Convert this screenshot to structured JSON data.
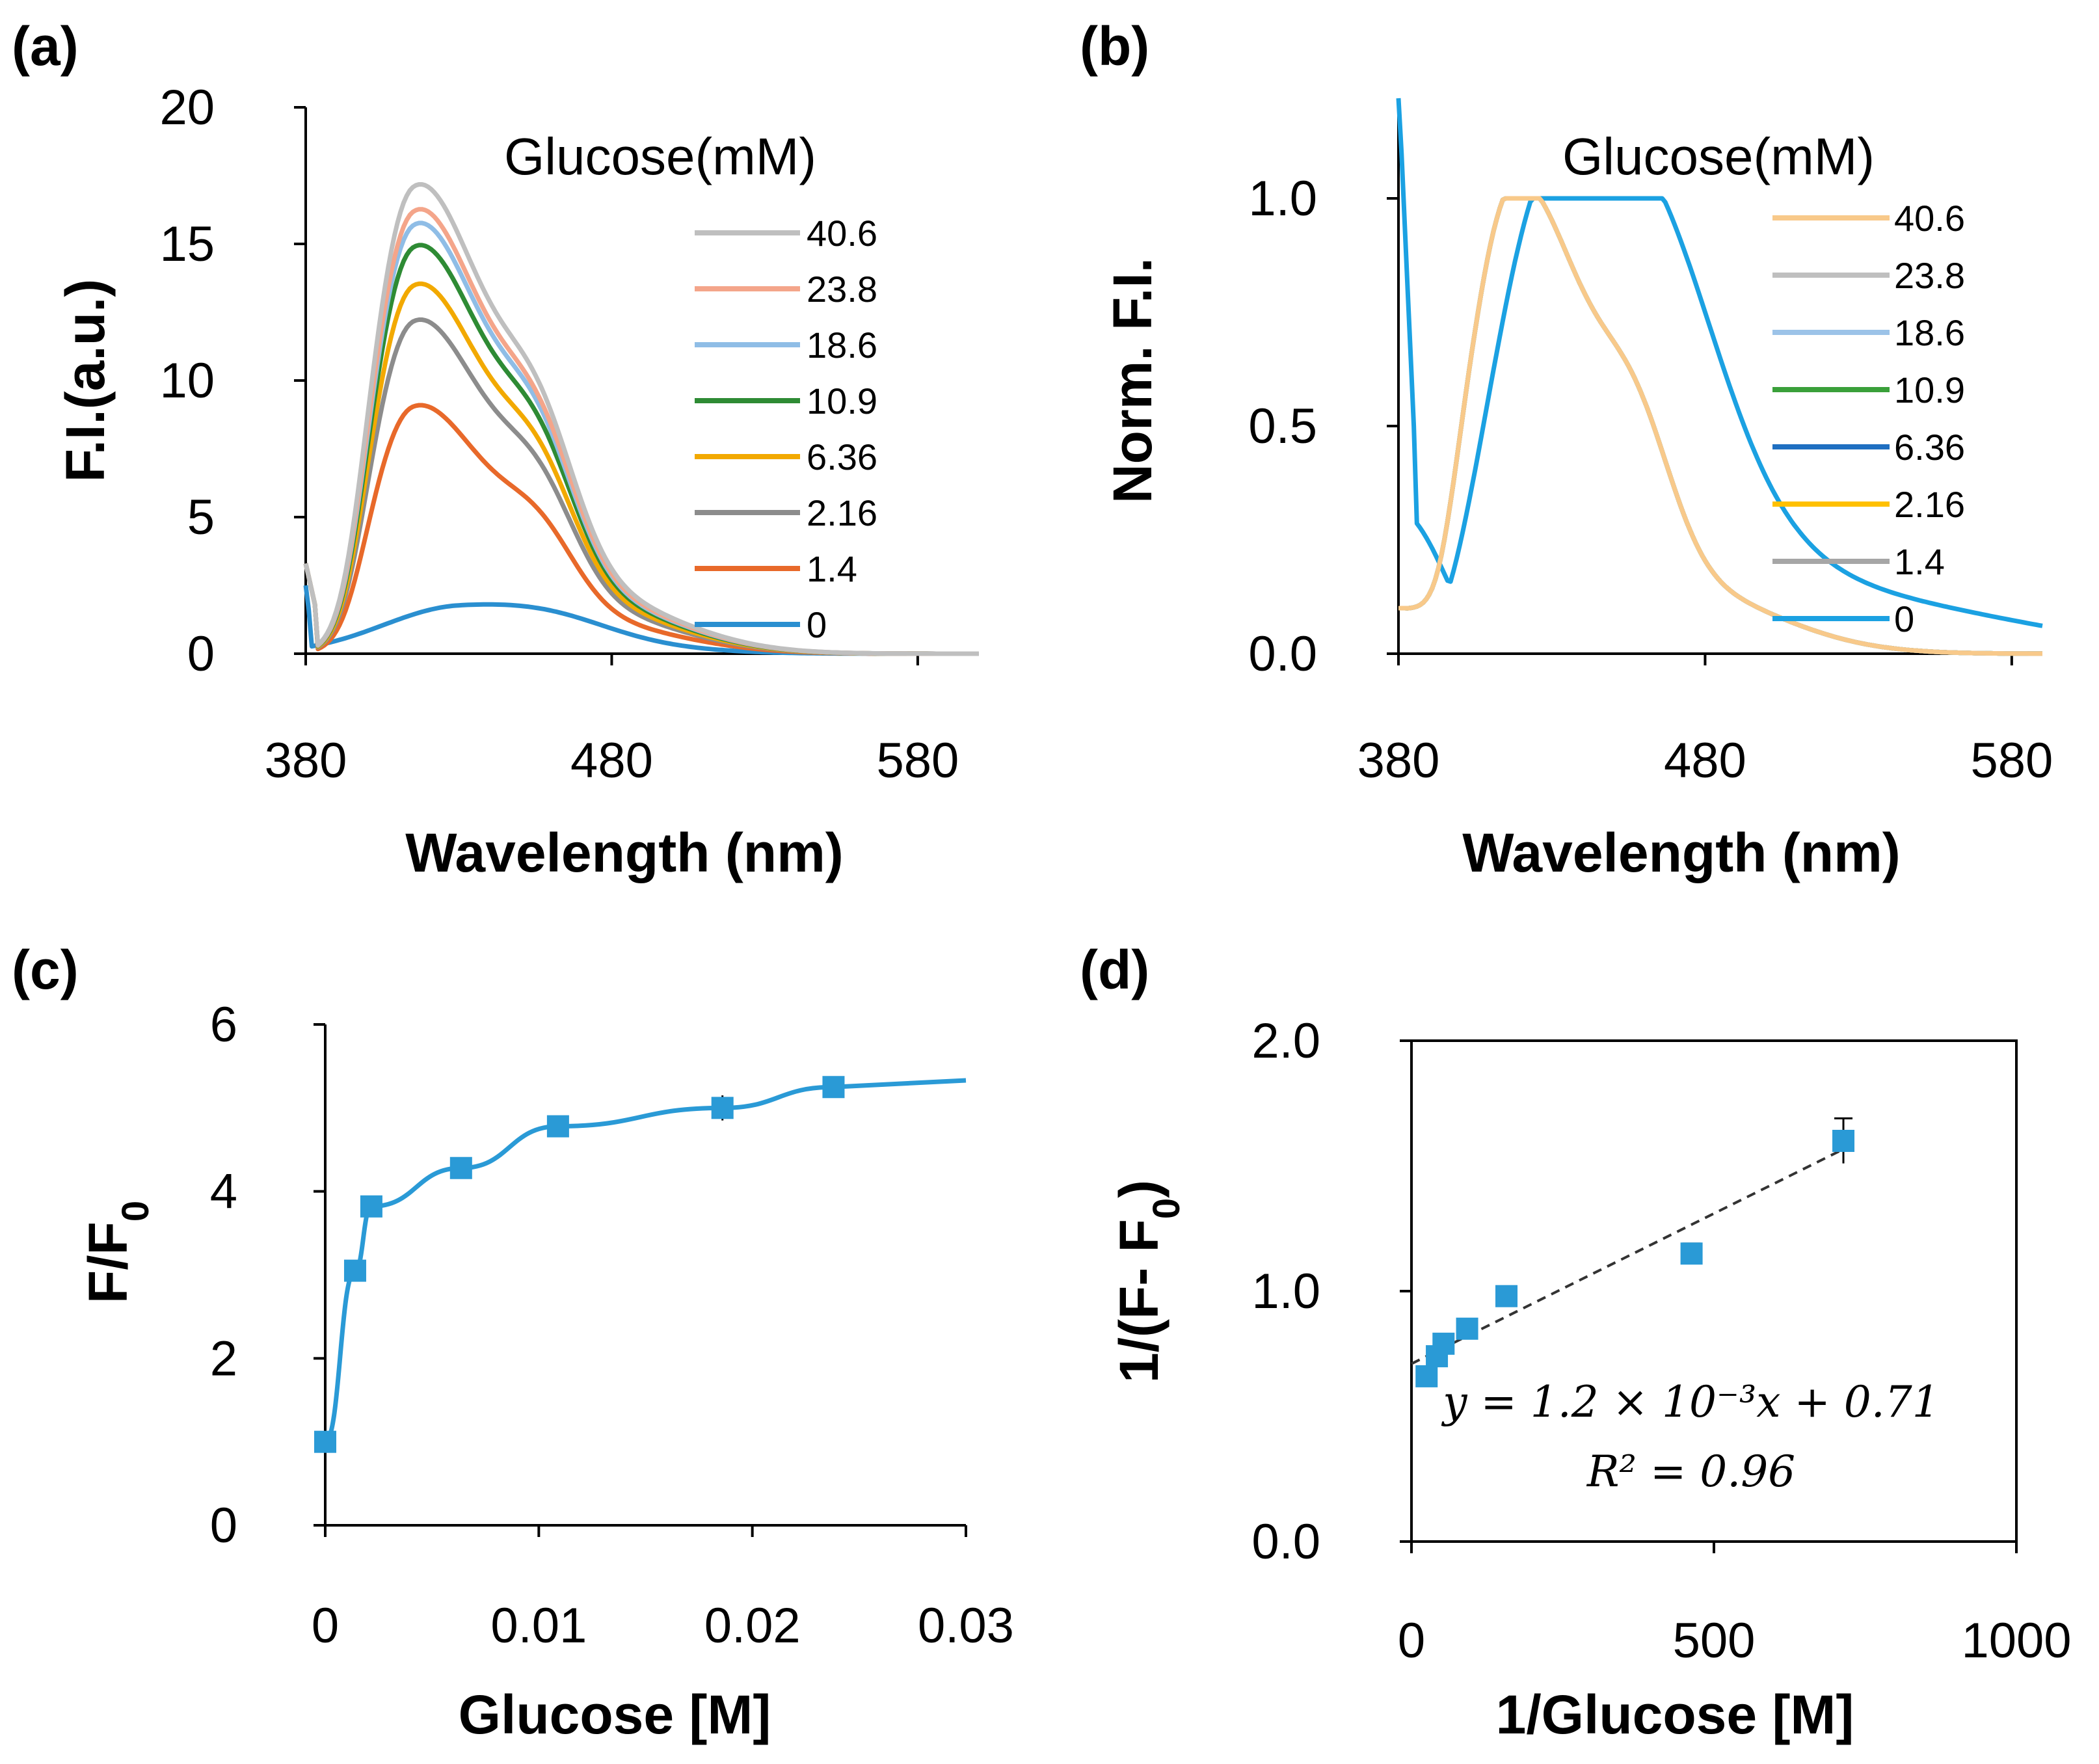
{
  "chart_data": [
    {
      "type": "line",
      "panel_label": "(a)",
      "xlabel": "Wavelength (nm)",
      "ylabel": "F.I.(a.u.)",
      "xlim": [
        380,
        600
      ],
      "ylim": [
        0,
        20
      ],
      "xticks": [
        "380",
        "480",
        "580"
      ],
      "yticks": [
        "0",
        "5",
        "10",
        "15",
        "20"
      ],
      "legend_title": "Glucose(mM)",
      "series": [
        {
          "name": "40.6",
          "color": "#bfbfbf",
          "peak": 17.0
        },
        {
          "name": "23.8",
          "color": "#f4a58a",
          "peak": 16.1
        },
        {
          "name": "18.6",
          "color": "#8fbde6",
          "peak": 15.6
        },
        {
          "name": "10.9",
          "color": "#2e8b34",
          "peak": 14.8
        },
        {
          "name": "6.36",
          "color": "#f2a900",
          "peak": 13.4
        },
        {
          "name": "2.16",
          "color": "#8c8c8c",
          "peak": 12.1
        },
        {
          "name": "1.4",
          "color": "#e8692a",
          "peak": 9.0
        },
        {
          "name": "0",
          "color": "#2a8fd0",
          "peak": 1.7
        }
      ]
    },
    {
      "type": "line",
      "panel_label": "(b)",
      "xlabel": "Wavelength (nm)",
      "ylabel": "Norm. F.I.",
      "xlim": [
        380,
        590
      ],
      "ylim": [
        0,
        1.2
      ],
      "xticks": [
        "380",
        "480",
        "580"
      ],
      "yticks": [
        "0.0",
        "0.5",
        "1.0"
      ],
      "legend_title": "Glucose(mM)",
      "series": [
        {
          "name": "40.6",
          "color": "#f8c98a"
        },
        {
          "name": "23.8",
          "color": "#bfbfbf"
        },
        {
          "name": "18.6",
          "color": "#9cc3e8"
        },
        {
          "name": "10.9",
          "color": "#3aa03a"
        },
        {
          "name": "6.36",
          "color": "#1f6fc1"
        },
        {
          "name": "2.16",
          "color": "#ffc000"
        },
        {
          "name": "1.4",
          "color": "#a6a6a6"
        },
        {
          "name": "0",
          "color": "#1ba1e2"
        }
      ]
    },
    {
      "type": "line",
      "panel_label": "(c)",
      "xlabel": "Glucose [M]",
      "ylabel": "F/F0",
      "xlim": [
        0,
        0.03
      ],
      "ylim": [
        0,
        6
      ],
      "xticks": [
        "0",
        "0.01",
        "0.02",
        "0.03"
      ],
      "yticks": [
        "0",
        "2",
        "4",
        "6"
      ],
      "color": "#2a9ad6",
      "x": [
        0,
        0.0014,
        0.00216,
        0.00636,
        0.0109,
        0.0186,
        0.0238
      ],
      "y": [
        1.0,
        3.05,
        3.82,
        4.28,
        4.78,
        5.0,
        5.25
      ],
      "err": [
        0.05,
        0.08,
        0.1,
        0.06,
        0.08,
        0.15,
        0.1
      ]
    },
    {
      "type": "scatter",
      "panel_label": "(d)",
      "xlabel": "1/Glucose [M]",
      "ylabel": "1/(F- F0)",
      "xlim": [
        0,
        1000
      ],
      "ylim": [
        0,
        2.0
      ],
      "xticks": [
        "0",
        "500",
        "1000"
      ],
      "yticks": [
        "0.0",
        "1.0",
        "2.0"
      ],
      "color": "#2a9ad6",
      "x": [
        25,
        42,
        53,
        92,
        157,
        463,
        714
      ],
      "y": [
        0.66,
        0.74,
        0.79,
        0.85,
        0.98,
        1.15,
        1.6
      ],
      "err": [
        0.03,
        0.03,
        0.03,
        0.03,
        0.03,
        0.04,
        0.09
      ],
      "fit": {
        "slope": 0.0012,
        "intercept": 0.71
      },
      "equation": "y = 1.2 × 10⁻³x + 0.71",
      "r2": "R² = 0.96"
    }
  ]
}
